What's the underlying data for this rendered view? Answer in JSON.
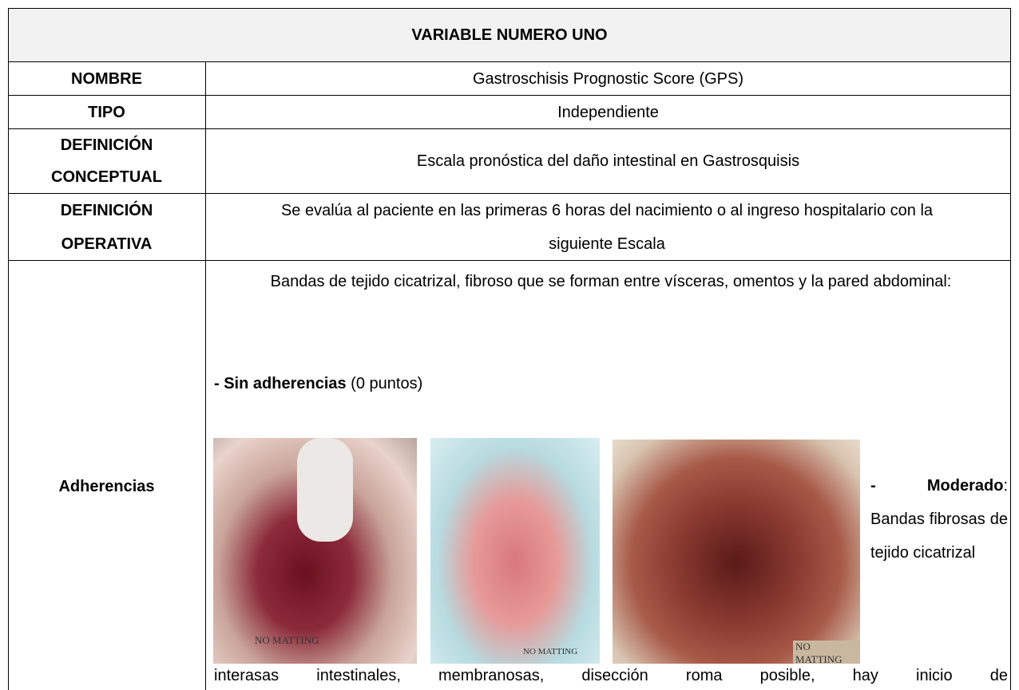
{
  "header": {
    "title": "VARIABLE NUMERO UNO"
  },
  "table": {
    "rows": [
      [
        "NOMBRE",
        "Gastroschisis Prognostic Score (GPS)"
      ],
      [
        "TIPO",
        "Independiente"
      ],
      [
        "DEFINICIÓN CONCEPTUAL",
        "Escala pronóstica del daño intestinal en Gastrosquisis"
      ],
      [
        "DEFINICIÓN OPERATIVA",
        "Se evalúa al paciente en las primeras 6 horas del nacimiento o al ingreso hospitalario con la siguiente Escala"
      ]
    ]
  },
  "adherencias": {
    "label": "Adherencias",
    "intro": "Bandas de tejido cicatrizal, fibroso que se forman entre vísceras, omentos y la pared abdominal:",
    "option_bold": "- Sin adherencias",
    "option_rest": " (0 puntos)",
    "images": [
      {
        "caption": "NO MATTING"
      },
      {
        "caption": "NO MATTING"
      },
      {
        "caption": "NO MATTING"
      }
    ],
    "moderado_bold": "- Moderado",
    "moderado_text": ": Bandas fibrosas de tejido cicatrizal",
    "continuation": "interasas intestinales, membranosas, disección roma posible, hay inicio de"
  }
}
